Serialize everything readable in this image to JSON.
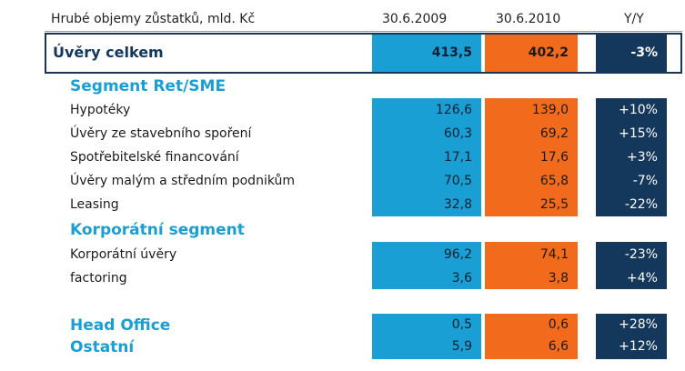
{
  "header": {
    "title": "Hrubé objemy zůstatků, mld. Kč",
    "col1": "30.6.2009",
    "col2": "30.6.2010",
    "col3": "Y/Y"
  },
  "total": {
    "label": "Úvěry celkem",
    "v2009": "413,5",
    "v2010": "402,2",
    "yy": "-3%"
  },
  "segments": [
    {
      "title": "Segment Ret/SME",
      "rows": [
        {
          "label": "Hypotéky",
          "v2009": "126,6",
          "v2010": "139,0",
          "yy": "+10%"
        },
        {
          "label": "Úvěry ze stavebního spoření",
          "v2009": "60,3",
          "v2010": "69,2",
          "yy": "+15%"
        },
        {
          "label": "Spotřebitelské financování",
          "v2009": "17,1",
          "v2010": "17,6",
          "yy": "+3%"
        },
        {
          "label": "Úvěry malým a středním podnikům",
          "v2009": "70,5",
          "v2010": "65,8",
          "yy": "-7%"
        },
        {
          "label": "Leasing",
          "v2009": "32,8",
          "v2010": "25,5",
          "yy": "-22%"
        }
      ]
    },
    {
      "title": "Korporátní segment",
      "rows": [
        {
          "label": "Korporátní úvěry",
          "v2009": "96,2",
          "v2010": "74,1",
          "yy": "-23%"
        },
        {
          "label": "factoring",
          "v2009": "3,6",
          "v2010": "3,8",
          "yy": "+4%"
        }
      ]
    }
  ],
  "other": [
    {
      "label": "Head Office",
      "v2009": "0,5",
      "v2010": "0,6",
      "yy": "+28%"
    },
    {
      "label": "Ostatní",
      "v2009": "5,9",
      "v2010": "6,6",
      "yy": "+12%"
    }
  ],
  "colors": {
    "blue": "#1a9fd4",
    "orange": "#f26a1b",
    "navy": "#14375c"
  }
}
